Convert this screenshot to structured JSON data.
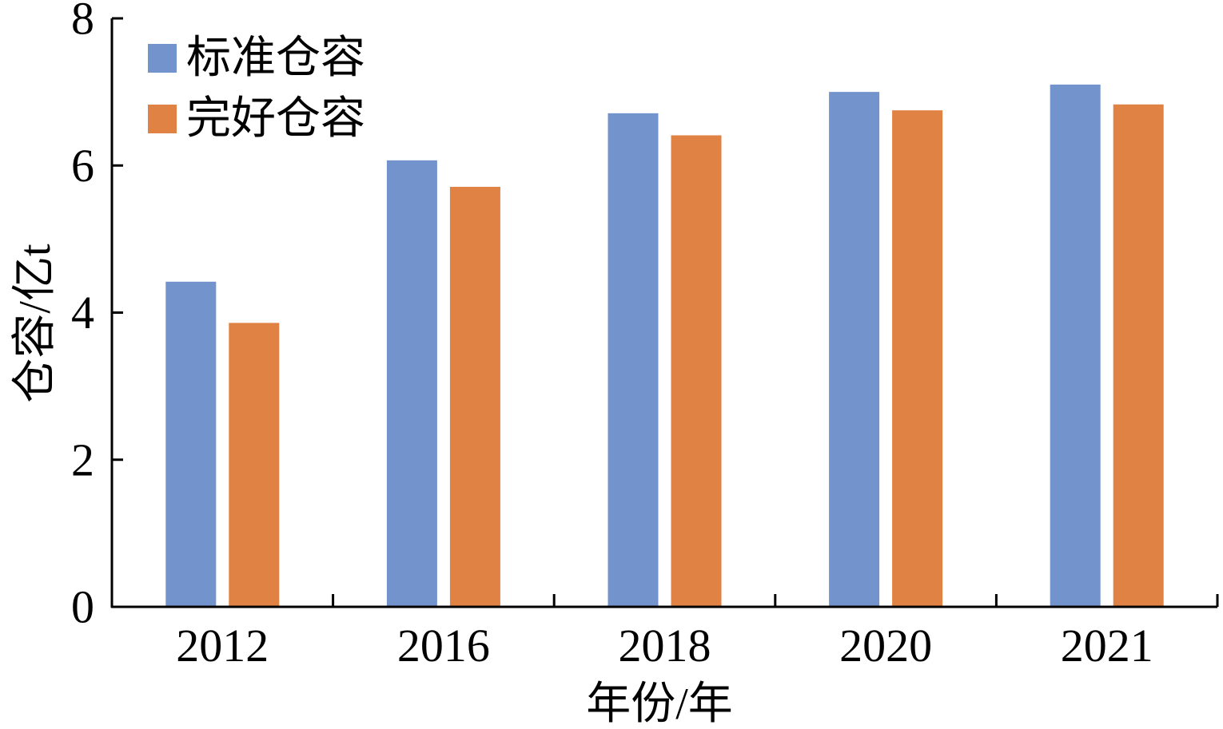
{
  "chart_data": {
    "type": "bar",
    "title": "",
    "xlabel": "年份/年",
    "ylabel": "仓容/亿t",
    "categories": [
      "2012",
      "2016",
      "2018",
      "2020",
      "2021"
    ],
    "series": [
      {
        "name": "标准仓容",
        "color": "#7293cb",
        "values": [
          4.42,
          6.07,
          6.71,
          7.0,
          7.1
        ]
      },
      {
        "name": "完好仓容",
        "color": "#e08243",
        "values": [
          3.86,
          5.71,
          6.41,
          6.75,
          6.83
        ]
      }
    ],
    "ylim": [
      0,
      8
    ],
    "yticks": [
      0,
      2,
      4,
      6,
      8
    ],
    "grid": false,
    "legend_position": "top-left"
  }
}
